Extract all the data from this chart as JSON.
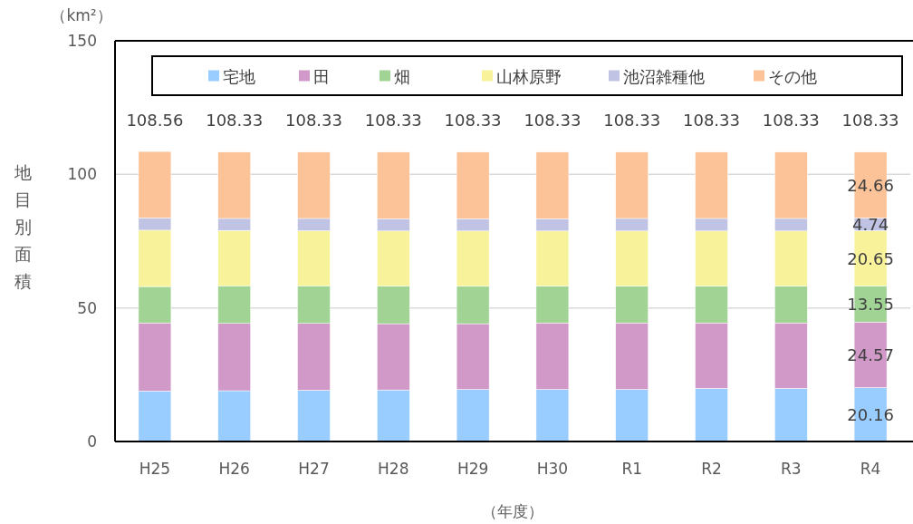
{
  "chart_data": {
    "type": "bar",
    "stacked": true,
    "categories": [
      "H25",
      "H26",
      "H27",
      "H28",
      "H29",
      "H30",
      "R1",
      "R2",
      "R3",
      "R4"
    ],
    "series": [
      {
        "name": "宅地",
        "color": "#99ccff",
        "values": [
          18.9,
          19.0,
          19.2,
          19.3,
          19.5,
          19.5,
          19.5,
          19.9,
          19.9,
          20.16
        ],
        "value_labels": [
          null,
          null,
          null,
          null,
          null,
          null,
          null,
          null,
          null,
          "20.16"
        ]
      },
      {
        "name": "田",
        "color": "#d199c8",
        "values": [
          25.5,
          25.2,
          25.0,
          24.8,
          24.6,
          24.9,
          24.9,
          24.5,
          24.5,
          24.57
        ],
        "value_labels": [
          null,
          null,
          null,
          null,
          null,
          null,
          null,
          null,
          null,
          "24.57"
        ]
      },
      {
        "name": "畑",
        "color": "#a0d394",
        "values": [
          13.6,
          14.1,
          14.1,
          14.1,
          14.0,
          13.8,
          13.8,
          13.8,
          13.8,
          13.55
        ],
        "value_labels": [
          null,
          null,
          null,
          null,
          null,
          null,
          null,
          null,
          null,
          "13.55"
        ]
      },
      {
        "name": "山林原野",
        "color": "#f8f39a",
        "values": [
          21.1,
          20.7,
          20.6,
          20.6,
          20.7,
          20.6,
          20.6,
          20.6,
          20.6,
          20.65
        ],
        "value_labels": [
          null,
          null,
          null,
          null,
          null,
          null,
          null,
          null,
          null,
          "20.65"
        ]
      },
      {
        "name": "池沼雑種他",
        "color": "#c0c3e3",
        "values": [
          4.6,
          4.5,
          4.6,
          4.6,
          4.6,
          4.6,
          4.7,
          4.7,
          4.7,
          4.74
        ],
        "value_labels": [
          null,
          null,
          null,
          null,
          null,
          null,
          null,
          null,
          null,
          "4.74"
        ]
      },
      {
        "name": "その他",
        "color": "#fdc398",
        "values": [
          24.86,
          24.83,
          24.83,
          24.93,
          24.93,
          24.93,
          24.83,
          24.83,
          24.83,
          24.66
        ],
        "value_labels": [
          null,
          null,
          null,
          null,
          null,
          null,
          null,
          null,
          null,
          "24.66"
        ]
      }
    ],
    "totals": [
      "108.56",
      "108.33",
      "108.33",
      "108.33",
      "108.33",
      "108.33",
      "108.33",
      "108.33",
      "108.33",
      "108.33"
    ],
    "ylim": [
      0,
      150
    ],
    "yticks": [
      0,
      50,
      100,
      150
    ],
    "grid": "y",
    "legend": "top",
    "ylabel": "地目別面積",
    "xlabel": "（年度）",
    "annotations": [
      "（km²）"
    ]
  }
}
